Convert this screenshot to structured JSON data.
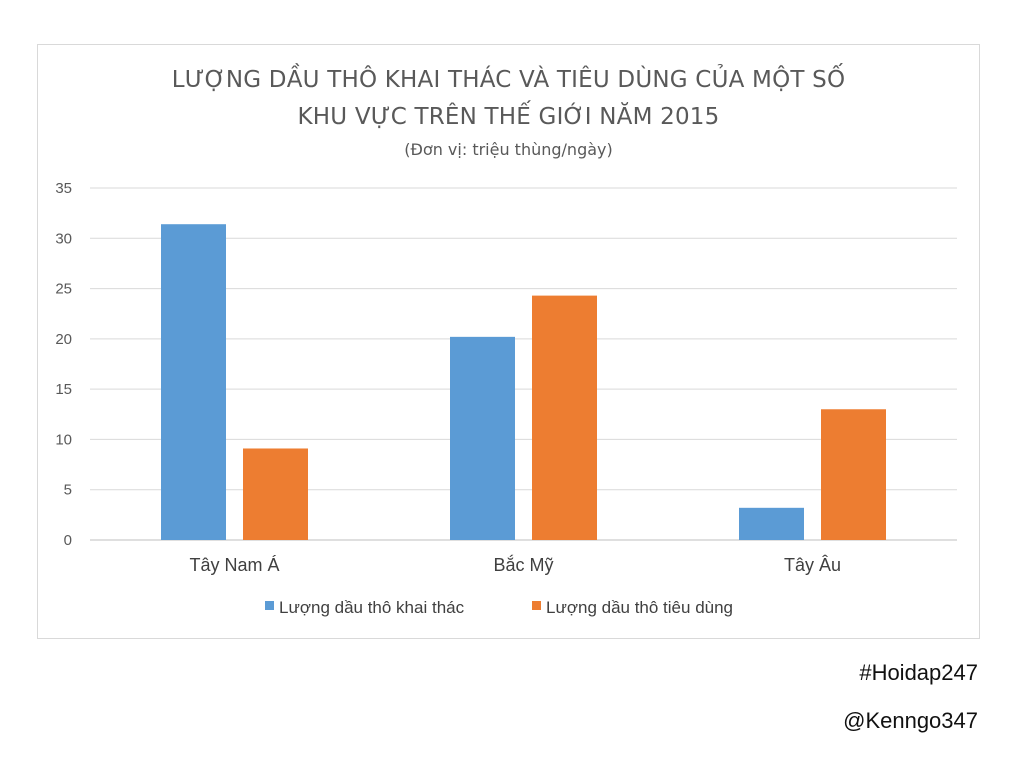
{
  "chart_data": {
    "type": "bar",
    "title_lines": [
      "LƯỢNG DẦU THÔ KHAI THÁC VÀ TIÊU DÙNG CỦA MỘT SỐ",
      "KHU VỰC TRÊN THẾ GIỚI NĂM 2015"
    ],
    "subtitle": "(Đơn vị: triệu thùng/ngày)",
    "categories": [
      "Tây Nam Á",
      "Bắc Mỹ",
      "Tây Âu"
    ],
    "series": [
      {
        "name": "Lượng dầu thô khai thác",
        "values": [
          31.4,
          20.2,
          3.2
        ],
        "color": "#5B9BD5"
      },
      {
        "name": "Lượng dầu thô tiêu dùng",
        "values": [
          9.1,
          24.3,
          13.0
        ],
        "color": "#ED7D31"
      }
    ],
    "ylim": [
      0,
      35
    ],
    "yticks": [
      "0",
      "5",
      "10",
      "15",
      "20",
      "25",
      "30",
      "35"
    ],
    "grid": true,
    "legend_position": "bottom"
  },
  "watermarks": [
    "#Hoidap247",
    "@Kenngo347"
  ]
}
